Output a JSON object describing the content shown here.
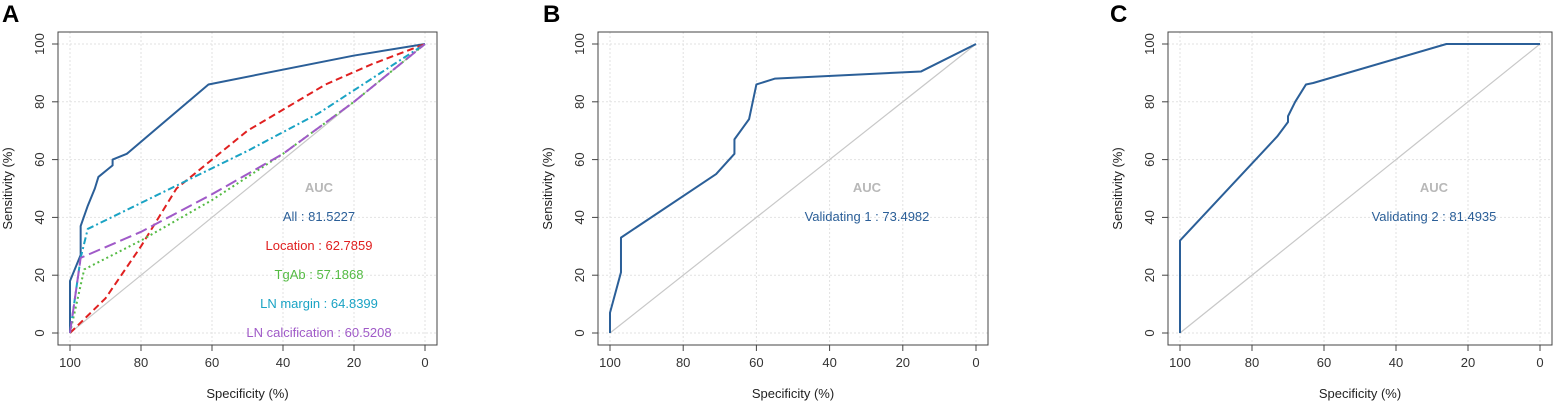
{
  "chart_data": [
    {
      "panel": "A",
      "type": "line",
      "xlabel": "Specificity (%)",
      "ylabel": "Sensitivity (%)",
      "xlim": [
        100,
        0
      ],
      "ylim": [
        0,
        100
      ],
      "x_ticks": [
        100,
        80,
        60,
        40,
        20,
        0
      ],
      "y_ticks": [
        0,
        20,
        40,
        60,
        80,
        100
      ],
      "grid": true,
      "diagonal_reference": true,
      "legend_title": "AUC",
      "series": [
        {
          "name": "All",
          "auc_label": "All : 81.5227",
          "color": "#2b5f98",
          "dash": "solid",
          "points": [
            [
              100,
              0
            ],
            [
              100,
              18
            ],
            [
              97,
              27
            ],
            [
              97,
              37
            ],
            [
              95,
              44
            ],
            [
              93,
              50
            ],
            [
              92,
              54
            ],
            [
              89,
              57
            ],
            [
              88,
              58
            ],
            [
              88,
              60
            ],
            [
              86,
              61
            ],
            [
              84,
              62
            ],
            [
              61,
              86
            ],
            [
              20,
              96
            ],
            [
              0,
              100
            ]
          ]
        },
        {
          "name": "Location",
          "auc_label": "Location : 62.7859",
          "color": "#e02020",
          "dash": "dashed",
          "points": [
            [
              100,
              0
            ],
            [
              90,
              12
            ],
            [
              80,
              30
            ],
            [
              70,
              50
            ],
            [
              50,
              70
            ],
            [
              28,
              86
            ],
            [
              15,
              93
            ],
            [
              0,
              100
            ]
          ]
        },
        {
          "name": "TgAb",
          "auc_label": "TgAb : 57.1868",
          "color": "#55bb44",
          "dash": "dotted",
          "points": [
            [
              100,
              0
            ],
            [
              96,
              22
            ],
            [
              80,
              32
            ],
            [
              60,
              46
            ],
            [
              40,
              62
            ],
            [
              20,
              80
            ],
            [
              0,
              100
            ]
          ]
        },
        {
          "name": "LN margin",
          "auc_label": "LN margin : 64.8399",
          "color": "#1aa3c4",
          "dash": "dotdash",
          "points": [
            [
              100,
              0
            ],
            [
              97,
              26
            ],
            [
              95,
              36
            ],
            [
              75,
              48
            ],
            [
              50,
              63
            ],
            [
              30,
              76
            ],
            [
              0,
              100
            ]
          ]
        },
        {
          "name": "LN calcification",
          "auc_label": "LN calcification : 60.5208",
          "color": "#a05ac8",
          "dash": "longdash",
          "points": [
            [
              100,
              0
            ],
            [
              97,
              26
            ],
            [
              80,
              35
            ],
            [
              60,
              48
            ],
            [
              40,
              62
            ],
            [
              20,
              80
            ],
            [
              0,
              100
            ]
          ]
        }
      ]
    },
    {
      "panel": "B",
      "type": "line",
      "xlabel": "Specificity (%)",
      "ylabel": "Sensitivity (%)",
      "xlim": [
        100,
        0
      ],
      "ylim": [
        0,
        100
      ],
      "x_ticks": [
        100,
        80,
        60,
        40,
        20,
        0
      ],
      "y_ticks": [
        0,
        20,
        40,
        60,
        80,
        100
      ],
      "grid": true,
      "diagonal_reference": true,
      "legend_title": "AUC",
      "series": [
        {
          "name": "Validating 1",
          "auc_label": "Validating 1 : 73.4982",
          "color": "#2b5f98",
          "dash": "solid",
          "points": [
            [
              100,
              0
            ],
            [
              100,
              7
            ],
            [
              97,
              21
            ],
            [
              97,
              33
            ],
            [
              71,
              55
            ],
            [
              66,
              62
            ],
            [
              66,
              67
            ],
            [
              62,
              74
            ],
            [
              60,
              86
            ],
            [
              55,
              88
            ],
            [
              15,
              90.5
            ],
            [
              0,
              100
            ]
          ]
        }
      ]
    },
    {
      "panel": "C",
      "type": "line",
      "xlabel": "Specificity (%)",
      "ylabel": "Sensitivity (%)",
      "xlim": [
        100,
        0
      ],
      "ylim": [
        0,
        100
      ],
      "x_ticks": [
        100,
        80,
        60,
        40,
        20,
        0
      ],
      "y_ticks": [
        0,
        20,
        40,
        60,
        80,
        100
      ],
      "grid": true,
      "diagonal_reference": true,
      "legend_title": "AUC",
      "series": [
        {
          "name": "Validating 2",
          "auc_label": "Validating 2 : 81.4935",
          "color": "#2b5f98",
          "dash": "solid",
          "points": [
            [
              100,
              0
            ],
            [
              100,
              32
            ],
            [
              76,
              64
            ],
            [
              73,
              68
            ],
            [
              70,
              73
            ],
            [
              70,
              75
            ],
            [
              68,
              80
            ],
            [
              65,
              86
            ],
            [
              63,
              86.5
            ],
            [
              26,
              100
            ],
            [
              0,
              100
            ]
          ]
        }
      ]
    }
  ]
}
